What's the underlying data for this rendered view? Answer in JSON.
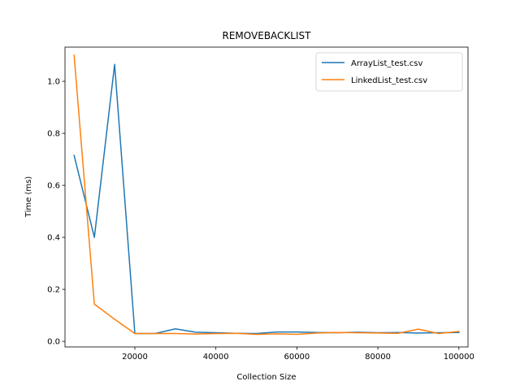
{
  "chart_data": {
    "type": "line",
    "title": "REMOVEBACKLIST",
    "xlabel": "Collection Size",
    "ylabel": "Time (ms)",
    "xlim": [
      2750,
      102250
    ],
    "ylim": [
      -0.0215,
      1.1315
    ],
    "xticks": [
      20000,
      40000,
      60000,
      80000,
      100000
    ],
    "xtick_labels": [
      "20000",
      "40000",
      "60000",
      "80000",
      "100000"
    ],
    "yticks": [
      0.0,
      0.2,
      0.4,
      0.6,
      0.8,
      1.0
    ],
    "ytick_labels": [
      "0.0",
      "0.2",
      "0.4",
      "0.6",
      "0.8",
      "1.0"
    ],
    "grid": false,
    "legend_position": "top-right",
    "series": [
      {
        "name": "ArrayList_test.csv",
        "color": "#1f77b4",
        "x": [
          5000,
          10000,
          15000,
          20000,
          25000,
          30000,
          35000,
          40000,
          45000,
          50000,
          55000,
          60000,
          65000,
          70000,
          75000,
          80000,
          85000,
          90000,
          95000,
          100000
        ],
        "y": [
          0.715,
          0.4,
          1.065,
          0.03,
          0.03,
          0.048,
          0.035,
          0.033,
          0.031,
          0.03,
          0.036,
          0.036,
          0.034,
          0.033,
          0.035,
          0.033,
          0.034,
          0.032,
          0.033,
          0.034
        ]
      },
      {
        "name": "LinkedList_test.csv",
        "color": "#ff7f0e",
        "x": [
          5000,
          10000,
          15000,
          20000,
          25000,
          30000,
          35000,
          40000,
          45000,
          50000,
          55000,
          60000,
          65000,
          70000,
          75000,
          80000,
          85000,
          90000,
          95000,
          100000
        ],
        "y": [
          1.1,
          0.143,
          0.085,
          0.03,
          0.03,
          0.03,
          0.028,
          0.03,
          0.031,
          0.027,
          0.029,
          0.027,
          0.032,
          0.034,
          0.033,
          0.032,
          0.031,
          0.047,
          0.03,
          0.038
        ]
      }
    ]
  }
}
